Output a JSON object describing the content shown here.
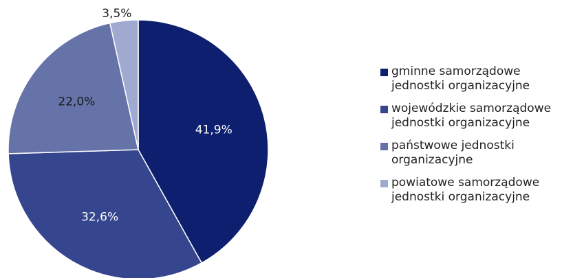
{
  "chart_data": {
    "type": "pie",
    "title": "",
    "legend_position": "right",
    "start_angle_deg": 0,
    "direction": "clockwise",
    "slices": [
      {
        "label": "gminne samorządowe jednostki organizacyjne",
        "value": 41.9,
        "value_label": "41,9%",
        "color": "#0d1f6e",
        "label_color": "#ffffff"
      },
      {
        "label": "wojewódzkie samorządowe jednostki organizacyjne",
        "value": 32.6,
        "value_label": "32,6%",
        "color": "#35468f",
        "label_color": "#ffffff"
      },
      {
        "label": "państwowe jednostki organizacyjne",
        "value": 22.0,
        "value_label": "22,0%",
        "color": "#6573a9",
        "label_color": "#1a1a1a"
      },
      {
        "label": "powiatowe samorządowe jednostki organizacyjne",
        "value": 3.5,
        "value_label": "3,5%",
        "color": "#a0a9cf",
        "label_color": "#1a1a1a"
      }
    ]
  }
}
